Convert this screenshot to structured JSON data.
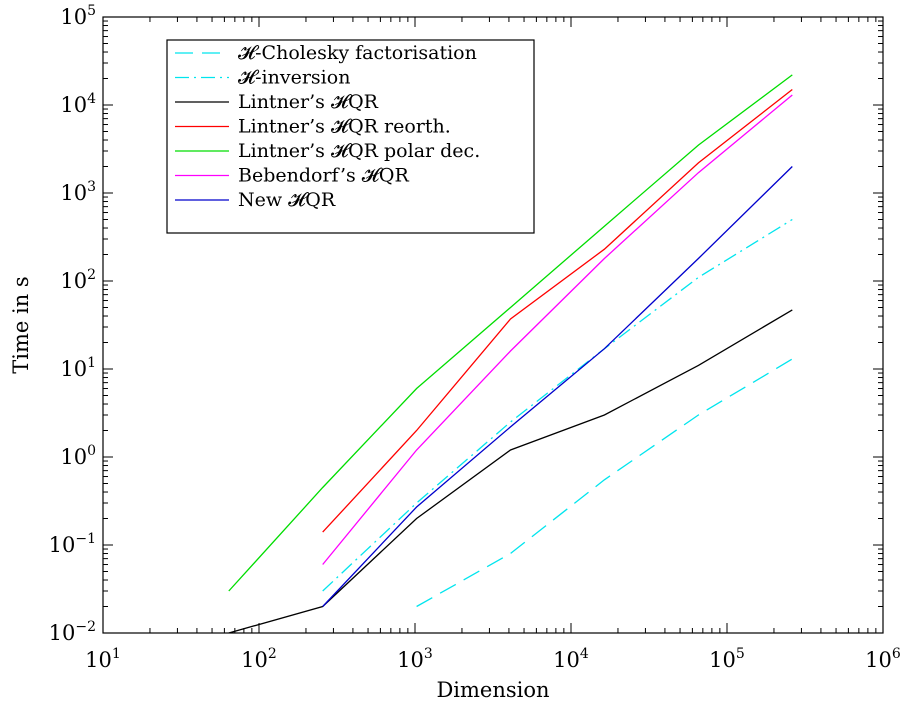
{
  "chart_data": {
    "type": "line",
    "xlabel": "Dimension",
    "ylabel": "Time in s",
    "xscale": "log",
    "yscale": "log",
    "xlim": [
      10,
      1000000
    ],
    "ylim": [
      0.01,
      100000
    ],
    "x_ticks": [
      {
        "base": "10",
        "exp": "1"
      },
      {
        "base": "10",
        "exp": "2"
      },
      {
        "base": "10",
        "exp": "3"
      },
      {
        "base": "10",
        "exp": "4"
      },
      {
        "base": "10",
        "exp": "5"
      },
      {
        "base": "10",
        "exp": "6"
      }
    ],
    "y_ticks": [
      {
        "base": "10",
        "exp": "−2"
      },
      {
        "base": "10",
        "exp": "−1"
      },
      {
        "base": "10",
        "exp": "0"
      },
      {
        "base": "10",
        "exp": "1"
      },
      {
        "base": "10",
        "exp": "2"
      },
      {
        "base": "10",
        "exp": "3"
      },
      {
        "base": "10",
        "exp": "4"
      },
      {
        "base": "10",
        "exp": "5"
      }
    ],
    "grid": false,
    "legend_position": "top-left",
    "series": [
      {
        "name": "𝓗-Cholesky factorisation",
        "color": "#00e5ee",
        "dash": "dashed",
        "x": [
          1024,
          4096,
          16384,
          65536,
          262144
        ],
        "y": [
          0.02,
          0.08,
          0.55,
          3.0,
          13
        ]
      },
      {
        "name": "𝓗-inversion",
        "color": "#00e5ee",
        "dash": "dashdot",
        "x": [
          256,
          1024,
          4096,
          16384,
          65536,
          262144
        ],
        "y": [
          0.03,
          0.3,
          2.5,
          17,
          110,
          500
        ]
      },
      {
        "name": "Lintner’s 𝓗QR",
        "color": "#000000",
        "dash": "solid",
        "x": [
          64,
          256,
          1024,
          4096,
          16384,
          65536,
          262144
        ],
        "y": [
          0.01,
          0.02,
          0.2,
          1.2,
          3.0,
          11,
          47
        ]
      },
      {
        "name": "Lintner’s 𝓗QR reorth.",
        "color": "#ff0000",
        "dash": "solid",
        "x": [
          256,
          1024,
          4096,
          16384,
          65536,
          262144
        ],
        "y": [
          0.14,
          2.0,
          37,
          230,
          2200,
          15000
        ]
      },
      {
        "name": "Lintner’s 𝓗QR polar dec.",
        "color": "#00dd00",
        "dash": "solid",
        "x": [
          64,
          256,
          1024,
          4096,
          16384,
          65536,
          262144
        ],
        "y": [
          0.03,
          0.45,
          6.0,
          50,
          420,
          3500,
          22000
        ]
      },
      {
        "name": "Bebendorf’s 𝓗QR",
        "color": "#ff00ff",
        "dash": "solid",
        "x": [
          256,
          1024,
          4096,
          16384,
          65536,
          262144
        ],
        "y": [
          0.06,
          1.2,
          16,
          180,
          1700,
          13000
        ]
      },
      {
        "name": "New 𝓗QR",
        "color": "#0000cc",
        "dash": "solid",
        "x": [
          256,
          1024,
          4096,
          16384,
          65536,
          262144
        ],
        "y": [
          0.02,
          0.27,
          2.2,
          17,
          180,
          2000
        ]
      }
    ]
  }
}
